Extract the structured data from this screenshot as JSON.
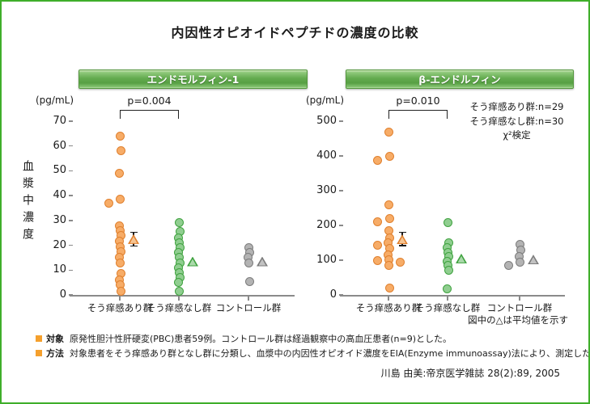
{
  "page": {
    "title": "内因性オピオイドペプチドの濃度の比較",
    "y_axis_label": "血漿中濃度",
    "mean_note": "図中の△は平均値を示す",
    "citation": "川島 由美:帝京医学雑誌 28(2):89, 2005",
    "border_color": "#3fae2a"
  },
  "notes": [
    {
      "label": "対象",
      "text": "原発性胆汁性肝硬変(PBC)患者59例。コントロール群は経過観察中の高血圧患者(n=9)とした。"
    },
    {
      "label": "方法",
      "text": "対象患者をそう痒感あり群となし群に分類し、血漿中の内因性オピオイド濃度をEIA(Enzyme immunoassay)法により、測定した。"
    }
  ],
  "series_colors": {
    "pruritus_yes": {
      "fill": "#F7AC67",
      "stroke": "#E0802E",
      "tri_fill": "#F6C492"
    },
    "pruritus_no": {
      "fill": "#90CE90",
      "stroke": "#3FA23F",
      "tri_fill": "#ABD9AB"
    },
    "control": {
      "fill": "#B3B3B3",
      "stroke": "#7C7C7C",
      "tri_fill": "#C2C2C2"
    }
  },
  "chart_data": [
    {
      "type": "scatter",
      "title": "エンドモルフィン-1",
      "unit": "(pg/mL)",
      "p_label": "p=0.004",
      "ylim": [
        0,
        70
      ],
      "yticks": [
        0,
        10,
        20,
        30,
        40,
        50,
        60,
        70
      ],
      "grid": false,
      "groups": [
        {
          "label": "そう痒感あり群",
          "series": "pruritus_yes",
          "values": [
            64,
            58,
            49,
            38.5,
            37,
            28,
            26,
            24,
            21.5,
            19.5,
            17.5,
            15,
            13,
            8.5,
            6,
            4,
            1.5
          ],
          "mean": 22.5,
          "error": [
            19.5,
            25.5
          ]
        },
        {
          "label": "そう痒感なし群",
          "series": "pruritus_no",
          "values": [
            29,
            25.5,
            23,
            21,
            19,
            17,
            15,
            13,
            11,
            9,
            7,
            5,
            1.5
          ],
          "mean": 13.5
        },
        {
          "label": "コントロール群",
          "series": "control",
          "values": [
            19,
            17,
            15,
            13,
            5.5
          ],
          "mean": 13.5
        }
      ]
    },
    {
      "type": "scatter",
      "title": "β-エンドルフィン",
      "unit": "(pg/mL)",
      "p_label": "p=0.010",
      "annotations": [
        "そう痒感あり群:n=29",
        "そう痒感なし群:n=30",
        "χ²検定"
      ],
      "ylim": [
        0,
        500
      ],
      "yticks": [
        0,
        100,
        200,
        300,
        400,
        500
      ],
      "grid": false,
      "groups": [
        {
          "label": "そう痒感あり群",
          "series": "pruritus_yes",
          "values": [
            468,
            398,
            388,
            260,
            220,
            210,
            185,
            165,
            150,
            142,
            133,
            115,
            102,
            98,
            95,
            85,
            20
          ],
          "mean": 160,
          "error": [
            140,
            182
          ]
        },
        {
          "label": "そう痒感なし群",
          "series": "pruritus_no",
          "values": [
            208,
            150,
            137,
            123,
            110,
            97,
            84,
            72,
            18
          ],
          "mean": 105
        },
        {
          "label": "コントロール群",
          "series": "control",
          "values": [
            145,
            128,
            110,
            95,
            85
          ],
          "mean": 102
        }
      ]
    }
  ]
}
